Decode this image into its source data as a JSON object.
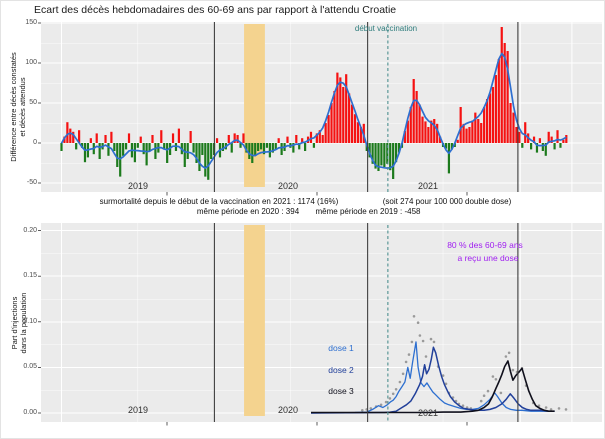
{
  "colors": {
    "background": "#ffffff",
    "panel_bg": "#ebebeb",
    "grid": "#ffffff",
    "excess_positive": "#f51111",
    "excess_negative": "#1c7a1c",
    "smoothed_line": "#2d6fd0",
    "lockdown_band": "#f4d38f",
    "year_divider_line": "#3f3f3f",
    "vaccination_dashed_line": "#4f9090",
    "vaccination_text": "#2f7d7d",
    "milestone_text": "#a020f0",
    "scatter_dots": "#9a9a9a",
    "axis_text": "#4d4d4d"
  },
  "annotations": {
    "vaccination_start_label": "début vaccination",
    "surmortality_line1": "surmortalité depuis le début de la vaccination en 2021 : 1174  (16%)",
    "double_dose_note": "(soit 274 pour 100 000 double dose)",
    "same_period_2020": "même période en 2020 : 394",
    "same_period_2019": "même période en 2019 : -458",
    "milestone_line1": "80 % des 60-69 ans",
    "milestone_line2": "a reçu une dose"
  },
  "chart_data": [
    {
      "type": "bar",
      "title": "Ecart des décès hebdomadaires des 60-69 ans par rapport à l'attendu Croatie",
      "ylabel_lines": [
        "Différence entre décès constatés",
        "et décès attendus"
      ],
      "ylabel": "Différence entre décès constatés et décès attendus",
      "yticks": [
        150,
        100,
        50,
        0,
        -50
      ],
      "ytick_labels": [
        "150",
        "100",
        "50",
        "0",
        "-50"
      ],
      "ylim": [
        -55,
        155
      ],
      "x_axis": "semaines, de 2019-S01 à 2022-S17",
      "year_labels": [
        "2019",
        "2020",
        "2021"
      ],
      "legend": "barres rouges = surmortalité, barres vertes = sous-mortalité, courbe bleue = lissage",
      "weekly_excess_deaths": [
        -10,
        8,
        26,
        18,
        14,
        -8,
        16,
        -6,
        -24,
        -18,
        6,
        -14,
        12,
        -20,
        -8,
        10,
        -16,
        14,
        -10,
        -30,
        -42,
        -16,
        -8,
        12,
        -18,
        -24,
        -6,
        8,
        -14,
        -28,
        -10,
        10,
        -20,
        -12,
        16,
        -8,
        -25,
        -15,
        12,
        -10,
        18,
        -14,
        -30,
        -20,
        15,
        -12,
        -25,
        -35,
        -15,
        -42,
        -46,
        -20,
        -15,
        6,
        -18,
        -10,
        -8,
        10,
        -12,
        12,
        10,
        -6,
        12,
        -12,
        -20,
        -25,
        -16,
        -10,
        -8,
        -14,
        -6,
        -18,
        -12,
        -8,
        6,
        -15,
        -10,
        8,
        -6,
        -12,
        10,
        -8,
        6,
        -10,
        8,
        14,
        -6,
        12,
        16,
        10,
        25,
        35,
        50,
        65,
        88,
        82,
        70,
        86,
        62,
        48,
        36,
        26,
        20,
        24,
        -10,
        -18,
        -26,
        -32,
        -35,
        -28,
        -30,
        -26,
        -34,
        -45,
        -24,
        -12,
        -6,
        15,
        28,
        45,
        80,
        65,
        48,
        33,
        27,
        20,
        28,
        30,
        24,
        8,
        -5,
        -7,
        -38,
        -8,
        -5,
        4,
        45,
        24,
        18,
        20,
        28,
        38,
        30,
        25,
        45,
        55,
        62,
        70,
        85,
        105,
        145,
        125,
        115,
        50,
        38,
        20,
        14,
        -6,
        26,
        12,
        -8,
        8,
        -12,
        6,
        -10,
        -16,
        14,
        8,
        -8,
        16,
        -6,
        4,
        10
      ],
      "events": {
        "lockdown_band_weeks": [
          62.2,
          69.3
        ],
        "year_divider_weeks": [
          52.1,
          104.3,
          155.5
        ],
        "vaccination_dashed_week": 111.2,
        "vaccination_label_week": 110.5
      }
    },
    {
      "type": "line",
      "ylabel_lines": [
        "Part d'injections",
        "dans la population"
      ],
      "ylabel": "Part d'injections dans la population",
      "yticks": [
        0.2,
        0.15,
        0.1,
        0.05,
        0.0
      ],
      "ytick_labels": [
        "0.20",
        "0.15",
        "0.10",
        "0.05",
        "0.00"
      ],
      "ylim": [
        0,
        0.21
      ],
      "year_labels": [
        "2019",
        "2020",
        "2021"
      ],
      "series": [
        {
          "name": "dose 1",
          "color": "#2d6fd0",
          "points": [
            [
              85,
              0
            ],
            [
              100,
              0.0005
            ],
            [
              104,
              0.001
            ],
            [
              106,
              0.004
            ],
            [
              108,
              0.008
            ],
            [
              109.5,
              0.006
            ],
            [
              111,
              0.009
            ],
            [
              112,
              0.012
            ],
            [
              113,
              0.014
            ],
            [
              114,
              0.018
            ],
            [
              115,
              0.024
            ],
            [
              116,
              0.029
            ],
            [
              117,
              0.034
            ],
            [
              118,
              0.05
            ],
            [
              118.8,
              0.038
            ],
            [
              119.6,
              0.055
            ],
            [
              120.8,
              0.078
            ],
            [
              121.5,
              0.05
            ],
            [
              122.5,
              0.033
            ],
            [
              123.5,
              0.029
            ],
            [
              124.5,
              0.033
            ],
            [
              125.5,
              0.028
            ],
            [
              126.5,
              0.023
            ],
            [
              127.5,
              0.02
            ],
            [
              129,
              0.015
            ],
            [
              130.5,
              0.011
            ],
            [
              132,
              0.009
            ],
            [
              134,
              0.007
            ],
            [
              136,
              0.005
            ],
            [
              138,
              0.004
            ],
            [
              140,
              0.004
            ],
            [
              142,
              0.005
            ],
            [
              144,
              0.009
            ],
            [
              146,
              0.015
            ],
            [
              147.6,
              0.022
            ],
            [
              148.6,
              0.018
            ],
            [
              150,
              0.011
            ],
            [
              151.5,
              0.006
            ],
            [
              153,
              0.004
            ],
            [
              155,
              0.003
            ],
            [
              157,
              0.003
            ],
            [
              160,
              0.002
            ],
            [
              164,
              0.002
            ],
            [
              168,
              0.002
            ]
          ]
        },
        {
          "name": "dose 2",
          "color": "#22409a",
          "points": [
            [
              85,
              0
            ],
            [
              110,
              0.0005
            ],
            [
              112,
              0.001
            ],
            [
              114,
              0.002
            ],
            [
              115,
              0.004
            ],
            [
              116,
              0.006
            ],
            [
              117.5,
              0.009
            ],
            [
              119,
              0.013
            ],
            [
              120.5,
              0.021
            ],
            [
              122,
              0.031
            ],
            [
              123,
              0.04
            ],
            [
              123.7,
              0.053
            ],
            [
              124.4,
              0.043
            ],
            [
              125.2,
              0.048
            ],
            [
              126,
              0.059
            ],
            [
              126.7,
              0.072
            ],
            [
              127.5,
              0.066
            ],
            [
              128.5,
              0.052
            ],
            [
              129.5,
              0.04
            ],
            [
              130.5,
              0.031
            ],
            [
              131.5,
              0.024
            ],
            [
              132.5,
              0.018
            ],
            [
              134,
              0.012
            ],
            [
              135.5,
              0.008
            ],
            [
              137,
              0.005
            ],
            [
              139,
              0.004
            ],
            [
              141,
              0.003
            ],
            [
              144,
              0.003
            ],
            [
              146,
              0.004
            ],
            [
              148,
              0.006
            ],
            [
              150,
              0.01
            ],
            [
              151.5,
              0.015
            ],
            [
              152.9,
              0.021
            ],
            [
              154.2,
              0.016
            ],
            [
              155.6,
              0.01
            ],
            [
              157,
              0.006
            ],
            [
              158.5,
              0.004
            ],
            [
              160,
              0.003
            ],
            [
              163,
              0.003
            ],
            [
              166,
              0.002
            ],
            [
              168,
              0.002
            ]
          ]
        },
        {
          "name": "dose 3",
          "color": "#10101c",
          "points": [
            [
              85,
              0.0005
            ],
            [
              125,
              0.0005
            ],
            [
              130,
              0.001
            ],
            [
              136,
              0.001
            ],
            [
              140,
              0.002
            ],
            [
              142,
              0.003
            ],
            [
              144,
              0.006
            ],
            [
              145.5,
              0.01
            ],
            [
              146.8,
              0.018
            ],
            [
              148,
              0.027
            ],
            [
              149,
              0.034
            ],
            [
              150,
              0.042
            ],
            [
              151,
              0.051
            ],
            [
              152.1,
              0.057
            ],
            [
              153,
              0.045
            ],
            [
              153.8,
              0.036
            ],
            [
              154.8,
              0.041
            ],
            [
              155.9,
              0.045
            ],
            [
              156.9,
              0.049
            ],
            [
              158,
              0.037
            ],
            [
              159.2,
              0.024
            ],
            [
              160.4,
              0.015
            ],
            [
              161.6,
              0.008
            ],
            [
              163,
              0.005
            ],
            [
              164.5,
              0.003
            ],
            [
              166,
              0.002
            ],
            [
              168,
              0.002
            ]
          ]
        }
      ],
      "scatter": {
        "name": "total hebdomadaire (points gris)",
        "color": "#9a9a9a",
        "points": [
          [
            102.5,
            0.003
          ],
          [
            104,
            0.004
          ],
          [
            105.4,
            0.005
          ],
          [
            107.2,
            0.007
          ],
          [
            108.9,
            0.009
          ],
          [
            110.6,
            0.012
          ],
          [
            111.9,
            0.016
          ],
          [
            113,
            0.021
          ],
          [
            114,
            0.026
          ],
          [
            115.3,
            0.034
          ],
          [
            116.4,
            0.043
          ],
          [
            117.4,
            0.056
          ],
          [
            118.4,
            0.064
          ],
          [
            119.4,
            0.078
          ],
          [
            120.1,
            0.106
          ],
          [
            121.5,
            0.099
          ],
          [
            122.1,
            0.085
          ],
          [
            123.2,
            0.079
          ],
          [
            124.2,
            0.062
          ],
          [
            125.9,
            0.081
          ],
          [
            126.9,
            0.078
          ],
          [
            128.3,
            0.051
          ],
          [
            130,
            0.041
          ],
          [
            131,
            0.032
          ],
          [
            132,
            0.022
          ],
          [
            133.4,
            0.017
          ],
          [
            134.4,
            0.013
          ],
          [
            135.4,
            0.01
          ],
          [
            136.8,
            0.008
          ],
          [
            138.2,
            0.006
          ],
          [
            139.5,
            0.005
          ],
          [
            143,
            0.013
          ],
          [
            144,
            0.019
          ],
          [
            145.3,
            0.024
          ],
          [
            147,
            0.04
          ],
          [
            148,
            0.037
          ],
          [
            149.7,
            0.022
          ],
          [
            151.4,
            0.062
          ],
          [
            152.5,
            0.066
          ],
          [
            153.8,
            0.047
          ],
          [
            155.2,
            0.045
          ],
          [
            156.9,
            0.049
          ],
          [
            158.3,
            0.03
          ],
          [
            160.7,
            0.011
          ],
          [
            162.7,
            0.008
          ],
          [
            165.1,
            0.006
          ],
          [
            166.8,
            0.004
          ],
          [
            169.5,
            0.005
          ],
          [
            171.9,
            0.004
          ]
        ]
      },
      "events": {
        "lockdown_band_weeks": [
          62.2,
          69.3
        ],
        "year_divider_weeks": [
          52.1,
          104.3,
          155.5
        ],
        "vaccination_dashed_week": 111.2
      }
    }
  ]
}
